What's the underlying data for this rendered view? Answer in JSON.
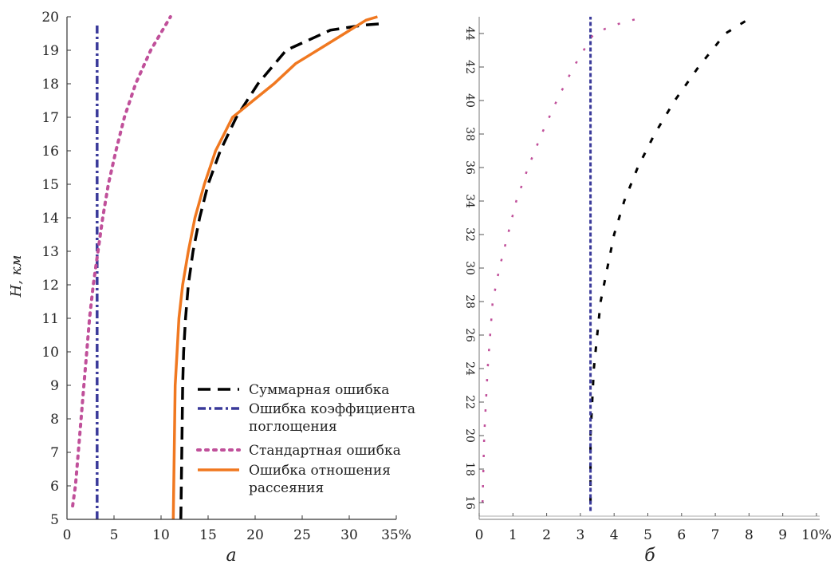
{
  "chart_data": [
    {
      "type": "line",
      "panel_label": "а",
      "ylabel": "H, км",
      "xlabel": "",
      "x_unit_suffix": "%",
      "xlim": [
        0,
        35
      ],
      "ylim": [
        5,
        20
      ],
      "x_ticks": [
        0,
        5,
        10,
        15,
        20,
        25,
        30,
        35
      ],
      "y_ticks": [
        5,
        6,
        7,
        8,
        9,
        10,
        11,
        12,
        13,
        14,
        15,
        16,
        17,
        18,
        19,
        20
      ],
      "legend_position": "lower-right",
      "series": [
        {
          "name": "Суммарная ошибка",
          "color": "#000000",
          "style": "dashed",
          "points": [
            [
              12.1,
              5
            ],
            [
              12.2,
              7
            ],
            [
              12.3,
              9
            ],
            [
              12.4,
              10
            ],
            [
              12.6,
              11
            ],
            [
              12.9,
              12
            ],
            [
              13.4,
              13
            ],
            [
              14.1,
              14
            ],
            [
              15.0,
              15
            ],
            [
              16.3,
              16
            ],
            [
              18.0,
              17
            ],
            [
              20.3,
              18
            ],
            [
              23.3,
              19
            ],
            [
              28.0,
              19.6
            ],
            [
              31.5,
              19.75
            ],
            [
              33.7,
              19.8
            ]
          ]
        },
        {
          "name": "Ошибка коэффициента поглощения",
          "color": "#3a3a9a",
          "style": "dashdot",
          "points": [
            [
              3.2,
              5
            ],
            [
              3.2,
              10
            ],
            [
              3.2,
              15
            ],
            [
              3.2,
              19.8
            ]
          ]
        },
        {
          "name": "Стандартная ошибка",
          "color": "#c0509a",
          "style": "dotted",
          "points": [
            [
              0.6,
              5.4
            ],
            [
              0.9,
              6
            ],
            [
              1.2,
              7
            ],
            [
              1.5,
              8
            ],
            [
              1.8,
              9
            ],
            [
              2.1,
              10
            ],
            [
              2.4,
              11
            ],
            [
              2.8,
              12
            ],
            [
              3.3,
              13
            ],
            [
              3.8,
              14
            ],
            [
              4.4,
              15
            ],
            [
              5.2,
              16
            ],
            [
              6.1,
              17
            ],
            [
              7.3,
              18
            ],
            [
              8.9,
              19
            ],
            [
              11.0,
              20
            ]
          ]
        },
        {
          "name": "Ошибка отношения рассеяния",
          "color": "#f07820",
          "style": "solid",
          "points": [
            [
              11.3,
              5
            ],
            [
              11.4,
              7
            ],
            [
              11.5,
              9
            ],
            [
              11.7,
              10
            ],
            [
              11.9,
              11
            ],
            [
              12.3,
              12
            ],
            [
              12.9,
              13
            ],
            [
              13.6,
              14
            ],
            [
              14.6,
              15
            ],
            [
              15.8,
              16
            ],
            [
              17.6,
              17
            ],
            [
              19.8,
              17.5
            ],
            [
              22.0,
              18
            ],
            [
              24.3,
              18.6
            ],
            [
              27.2,
              19.1
            ],
            [
              29.5,
              19.5
            ],
            [
              31.8,
              19.9
            ],
            [
              33.0,
              20
            ]
          ]
        }
      ]
    },
    {
      "type": "line",
      "panel_label": "б",
      "ylabel": "",
      "xlabel": "",
      "x_unit_suffix": "%",
      "xlim": [
        0,
        10
      ],
      "ylim": [
        15,
        45
      ],
      "x_ticks": [
        0,
        1,
        2,
        3,
        4,
        5,
        6,
        7,
        8,
        9,
        10
      ],
      "y_ticks": [
        16,
        18,
        20,
        22,
        24,
        26,
        28,
        30,
        32,
        34,
        36,
        38,
        40,
        42,
        44
      ],
      "series": [
        {
          "name": "",
          "color": "#000000",
          "style": "dashed",
          "points": [
            [
              3.3,
              16
            ],
            [
              3.3,
              20
            ],
            [
              3.35,
              22
            ],
            [
              3.4,
              24
            ],
            [
              3.5,
              26
            ],
            [
              3.6,
              28
            ],
            [
              3.8,
              30
            ],
            [
              4.0,
              32
            ],
            [
              4.3,
              34
            ],
            [
              4.7,
              36
            ],
            [
              5.2,
              38
            ],
            [
              5.8,
              40
            ],
            [
              6.5,
              42
            ],
            [
              7.3,
              44
            ],
            [
              8.1,
              45
            ]
          ]
        },
        {
          "name": "",
          "color": "#3a3a9a",
          "style": "dashdot",
          "points": [
            [
              3.3,
              15.5
            ],
            [
              3.3,
              30
            ],
            [
              3.3,
              45
            ]
          ]
        },
        {
          "name": "",
          "color": "#c0509a",
          "style": "dotted",
          "points": [
            [
              0.1,
              16
            ],
            [
              0.15,
              20
            ],
            [
              0.25,
              24
            ],
            [
              0.4,
              28
            ],
            [
              0.6,
              30
            ],
            [
              0.85,
              32
            ],
            [
              1.1,
              34
            ],
            [
              1.45,
              36
            ],
            [
              1.85,
              38
            ],
            [
              2.3,
              40
            ],
            [
              2.8,
              42
            ],
            [
              3.4,
              44
            ],
            [
              4.0,
              44.5
            ],
            [
              4.9,
              45
            ]
          ]
        }
      ]
    }
  ]
}
